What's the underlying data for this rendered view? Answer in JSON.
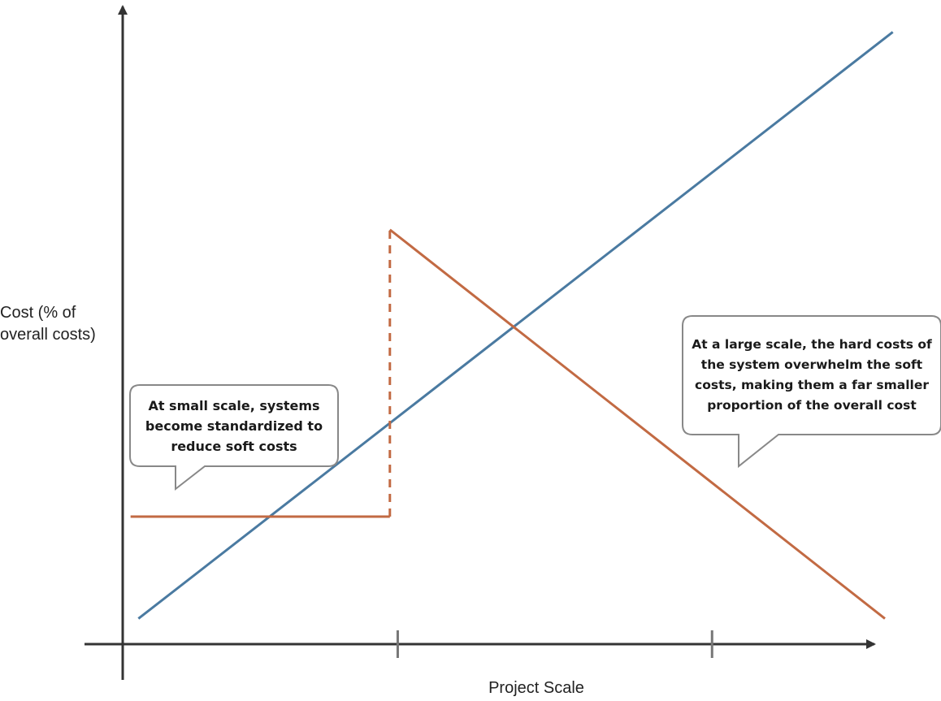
{
  "chart_data": {
    "type": "line",
    "title": "",
    "xlabel": "Project Scale",
    "ylabel_lines": [
      "Cost (% of",
      "overall costs)"
    ],
    "series": [
      {
        "color": "#4a7aa1",
        "points": [
          [
            0.2,
            0.4
          ],
          [
            9.8,
            9.6
          ]
        ]
      },
      {
        "color": "#c26a43",
        "segments": [
          {
            "points": [
              [
                0.1,
                2.0
              ],
              [
                3.4,
                2.0
              ]
            ]
          },
          {
            "points": [
              [
                3.4,
                2.0
              ],
              [
                3.4,
                6.5
              ]
            ],
            "dashed": true
          },
          {
            "points": [
              [
                3.4,
                6.5
              ],
              [
                9.7,
                0.4
              ]
            ]
          }
        ]
      }
    ],
    "xlim": [
      0,
      10
    ],
    "ylim": [
      0,
      10
    ],
    "x_ticks": [
      3.5,
      7.5
    ],
    "grid": false,
    "legend": "none",
    "annotations": [
      {
        "lines": [
          "At small scale, systems",
          "become standardized to",
          "reduce soft costs"
        ]
      },
      {
        "lines": [
          "At a large scale, the hard costs of",
          "the system overwhelm the soft",
          "costs, making them a far smaller",
          "proportion of the overall cost"
        ]
      }
    ]
  }
}
